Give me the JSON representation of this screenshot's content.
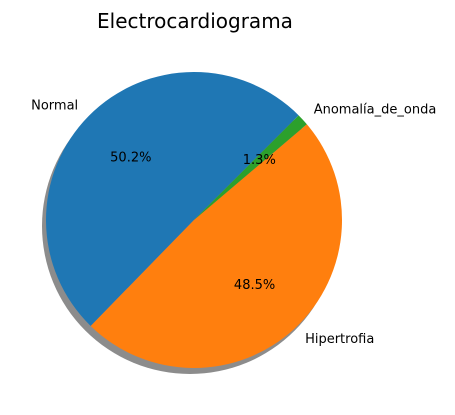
{
  "chart_data": {
    "type": "pie",
    "title": "Electrocardiograma",
    "slices": [
      {
        "label": "Normal",
        "value": 50.2,
        "pct_label": "50.2%",
        "color": "#1f77b4"
      },
      {
        "label": "Hipertrofia",
        "value": 48.5,
        "pct_label": "48.5%",
        "color": "#ff7f0e"
      },
      {
        "label": "Anomalía_de_onda",
        "value": 1.3,
        "pct_label": "1.3%",
        "color": "#2ca02c"
      }
    ],
    "start_angle_deg": 45,
    "shadow": true,
    "legend": "none"
  }
}
